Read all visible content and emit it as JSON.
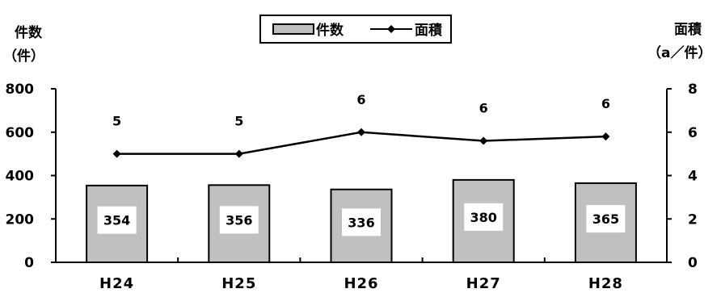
{
  "chart_data": {
    "type": "bar",
    "categories": [
      "H24",
      "H25",
      "H26",
      "H27",
      "H28"
    ],
    "series": [
      {
        "name": "件数",
        "type": "bar",
        "axis": "left",
        "values": [
          354,
          356,
          336,
          380,
          365
        ],
        "color": "#c0c0c0"
      },
      {
        "name": "面積",
        "type": "line",
        "axis": "right",
        "values": [
          5.0,
          5.0,
          6.0,
          5.6,
          5.8
        ],
        "data_labels": [
          "5",
          "5",
          "6",
          "6",
          "6"
        ],
        "color": "#000000"
      }
    ],
    "left_axis": {
      "label_line1": "件数",
      "label_line2": "（件）",
      "range": [
        0,
        800
      ],
      "ticks": [
        "0",
        "200",
        "400",
        "600",
        "800"
      ]
    },
    "right_axis": {
      "label_line1": "面積",
      "label_line2": "（a／件）",
      "range": [
        0,
        8
      ],
      "ticks": [
        "0",
        "2",
        "4",
        "6",
        "8"
      ]
    },
    "legend": {
      "position": "top-center",
      "items": [
        "件数",
        "面積"
      ]
    },
    "grid": false
  }
}
